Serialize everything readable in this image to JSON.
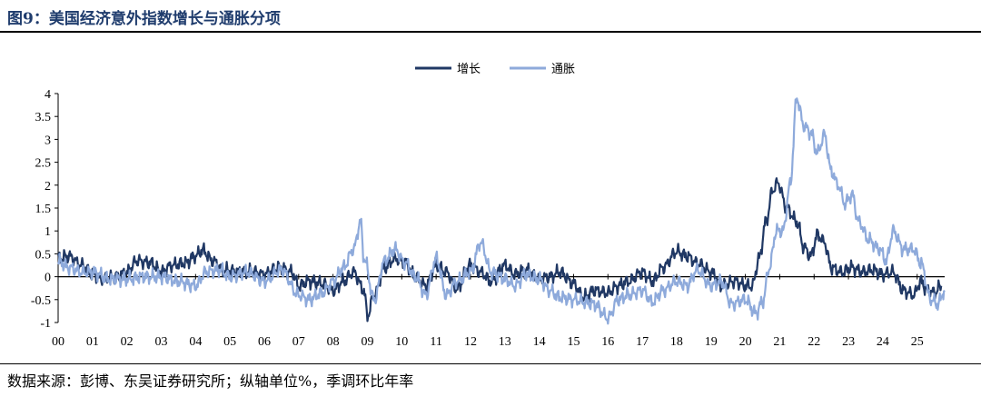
{
  "header": {
    "title": "图9：美国经济意外指数增长与通胀分项"
  },
  "footer": {
    "source": "数据来源：彭博、东吴证券研究所；纵轴单位%，季调环比年率"
  },
  "chart_data": {
    "type": "line",
    "title": "图9：美国经济意外指数增长与通胀分项",
    "xlabel": "",
    "ylabel": "",
    "x_range": [
      2000.0,
      2025.8
    ],
    "x_tick_labels": [
      "00",
      "01",
      "02",
      "03",
      "04",
      "05",
      "06",
      "07",
      "08",
      "09",
      "10",
      "11",
      "12",
      "13",
      "14",
      "15",
      "16",
      "17",
      "18",
      "19",
      "20",
      "21",
      "22",
      "23",
      "24",
      "25"
    ],
    "ylim": [
      -1,
      4
    ],
    "y_ticks": [
      -1,
      -0.5,
      0,
      0.5,
      1,
      1.5,
      2,
      2.5,
      3,
      3.5,
      4
    ],
    "y_tick_labels": [
      "-1",
      "-0.5",
      "0",
      "0.5",
      "1",
      "1.5",
      "2",
      "2.5",
      "3",
      "3.5",
      "4"
    ],
    "grid": false,
    "legend": "top-center",
    "series": [
      {
        "name": "增长",
        "color": "#203864",
        "points": [
          [
            2000.0,
            0.4
          ],
          [
            2000.3,
            0.45
          ],
          [
            2000.7,
            0.25
          ],
          [
            2001.0,
            0.05
          ],
          [
            2001.3,
            -0.05
          ],
          [
            2001.7,
            0.0
          ],
          [
            2002.0,
            0.1
          ],
          [
            2002.3,
            0.35
          ],
          [
            2002.7,
            0.3
          ],
          [
            2003.0,
            0.1
          ],
          [
            2003.3,
            0.25
          ],
          [
            2003.7,
            0.3
          ],
          [
            2004.0,
            0.45
          ],
          [
            2004.2,
            0.58
          ],
          [
            2004.5,
            0.35
          ],
          [
            2004.8,
            0.15
          ],
          [
            2005.2,
            0.1
          ],
          [
            2005.6,
            0.12
          ],
          [
            2006.0,
            0.05
          ],
          [
            2006.4,
            0.2
          ],
          [
            2006.8,
            0.1
          ],
          [
            2007.0,
            -0.2
          ],
          [
            2007.3,
            -0.1
          ],
          [
            2007.7,
            -0.15
          ],
          [
            2008.0,
            -0.3
          ],
          [
            2008.3,
            -0.1
          ],
          [
            2008.6,
            0.1
          ],
          [
            2008.9,
            -0.3
          ],
          [
            2009.0,
            -0.85
          ],
          [
            2009.2,
            -0.4
          ],
          [
            2009.5,
            0.2
          ],
          [
            2009.8,
            0.4
          ],
          [
            2010.1,
            0.3
          ],
          [
            2010.4,
            0.0
          ],
          [
            2010.7,
            -0.2
          ],
          [
            2011.0,
            0.25
          ],
          [
            2011.3,
            0.1
          ],
          [
            2011.6,
            -0.25
          ],
          [
            2012.0,
            0.25
          ],
          [
            2012.3,
            0.1
          ],
          [
            2012.6,
            -0.1
          ],
          [
            2013.0,
            0.25
          ],
          [
            2013.3,
            0.05
          ],
          [
            2013.6,
            0.15
          ],
          [
            2014.0,
            -0.05
          ],
          [
            2014.3,
            0.0
          ],
          [
            2014.6,
            0.1
          ],
          [
            2015.0,
            -0.15
          ],
          [
            2015.3,
            -0.45
          ],
          [
            2015.6,
            -0.3
          ],
          [
            2016.0,
            -0.35
          ],
          [
            2016.3,
            -0.2
          ],
          [
            2016.6,
            -0.1
          ],
          [
            2017.0,
            0.1
          ],
          [
            2017.3,
            -0.1
          ],
          [
            2017.6,
            0.2
          ],
          [
            2018.0,
            0.55
          ],
          [
            2018.3,
            0.45
          ],
          [
            2018.6,
            0.3
          ],
          [
            2019.0,
            0.1
          ],
          [
            2019.3,
            -0.2
          ],
          [
            2019.7,
            -0.1
          ],
          [
            2020.0,
            -0.2
          ],
          [
            2020.2,
            -0.2
          ],
          [
            2020.4,
            0.4
          ],
          [
            2020.6,
            1.2
          ],
          [
            2020.8,
            1.9
          ],
          [
            2020.95,
            2.05
          ],
          [
            2021.2,
            1.5
          ],
          [
            2021.5,
            1.2
          ],
          [
            2021.7,
            0.65
          ],
          [
            2021.9,
            0.45
          ],
          [
            2022.1,
            0.92
          ],
          [
            2022.3,
            0.75
          ],
          [
            2022.5,
            0.2
          ],
          [
            2022.8,
            0.1
          ],
          [
            2023.1,
            0.2
          ],
          [
            2023.4,
            0.1
          ],
          [
            2023.7,
            0.15
          ],
          [
            2024.0,
            0.05
          ],
          [
            2024.3,
            0.1
          ],
          [
            2024.6,
            -0.3
          ],
          [
            2024.9,
            -0.4
          ],
          [
            2025.1,
            -0.1
          ],
          [
            2025.3,
            -0.3
          ],
          [
            2025.5,
            -0.35
          ],
          [
            2025.7,
            -0.2
          ]
        ]
      },
      {
        "name": "通胀",
        "color": "#8eaadb",
        "points": [
          [
            2000.0,
            0.35
          ],
          [
            2000.3,
            0.2
          ],
          [
            2000.7,
            0.1
          ],
          [
            2001.0,
            0.1
          ],
          [
            2001.5,
            -0.05
          ],
          [
            2002.0,
            -0.05
          ],
          [
            2002.5,
            0.0
          ],
          [
            2003.0,
            0.0
          ],
          [
            2003.5,
            -0.1
          ],
          [
            2004.0,
            -0.2
          ],
          [
            2004.3,
            0.1
          ],
          [
            2004.7,
            0.15
          ],
          [
            2005.0,
            0.0
          ],
          [
            2005.5,
            0.1
          ],
          [
            2006.0,
            -0.1
          ],
          [
            2006.5,
            0.15
          ],
          [
            2007.0,
            -0.4
          ],
          [
            2007.3,
            -0.5
          ],
          [
            2007.7,
            -0.35
          ],
          [
            2008.0,
            -0.1
          ],
          [
            2008.3,
            0.2
          ],
          [
            2008.6,
            0.6
          ],
          [
            2008.8,
            1.2
          ],
          [
            2008.9,
            0.4
          ],
          [
            2009.2,
            -0.5
          ],
          [
            2009.5,
            0.35
          ],
          [
            2009.8,
            0.6
          ],
          [
            2010.1,
            0.3
          ],
          [
            2010.4,
            0.0
          ],
          [
            2010.7,
            -0.4
          ],
          [
            2011.0,
            0.4
          ],
          [
            2011.3,
            -0.4
          ],
          [
            2011.6,
            -0.1
          ],
          [
            2012.0,
            0.1
          ],
          [
            2012.3,
            0.75
          ],
          [
            2012.6,
            0.1
          ],
          [
            2013.0,
            -0.05
          ],
          [
            2013.3,
            -0.2
          ],
          [
            2013.6,
            0.05
          ],
          [
            2014.0,
            -0.05
          ],
          [
            2014.3,
            -0.3
          ],
          [
            2014.6,
            -0.45
          ],
          [
            2015.0,
            -0.5
          ],
          [
            2015.3,
            -0.55
          ],
          [
            2015.6,
            -0.6
          ],
          [
            2016.0,
            -0.9
          ],
          [
            2016.3,
            -0.5
          ],
          [
            2016.6,
            -0.4
          ],
          [
            2017.0,
            -0.3
          ],
          [
            2017.3,
            -0.55
          ],
          [
            2017.6,
            -0.3
          ],
          [
            2018.0,
            -0.1
          ],
          [
            2018.3,
            -0.2
          ],
          [
            2018.6,
            0.15
          ],
          [
            2019.0,
            -0.2
          ],
          [
            2019.3,
            -0.1
          ],
          [
            2019.6,
            -0.6
          ],
          [
            2020.0,
            -0.5
          ],
          [
            2020.3,
            -0.8
          ],
          [
            2020.5,
            -0.55
          ],
          [
            2020.7,
            0.2
          ],
          [
            2020.9,
            1.0
          ],
          [
            2021.1,
            1.0
          ],
          [
            2021.3,
            2.0
          ],
          [
            2021.5,
            3.9
          ],
          [
            2021.7,
            3.3
          ],
          [
            2021.9,
            3.15
          ],
          [
            2022.1,
            2.7
          ],
          [
            2022.3,
            3.1
          ],
          [
            2022.5,
            2.3
          ],
          [
            2022.7,
            2.0
          ],
          [
            2022.9,
            1.6
          ],
          [
            2023.1,
            1.8
          ],
          [
            2023.3,
            1.2
          ],
          [
            2023.6,
            0.8
          ],
          [
            2023.9,
            0.6
          ],
          [
            2024.1,
            0.35
          ],
          [
            2024.3,
            1.0
          ],
          [
            2024.6,
            0.6
          ],
          [
            2024.9,
            0.6
          ],
          [
            2025.1,
            0.3
          ],
          [
            2025.4,
            -0.5
          ],
          [
            2025.6,
            -0.6
          ],
          [
            2025.8,
            -0.3
          ]
        ]
      }
    ]
  }
}
